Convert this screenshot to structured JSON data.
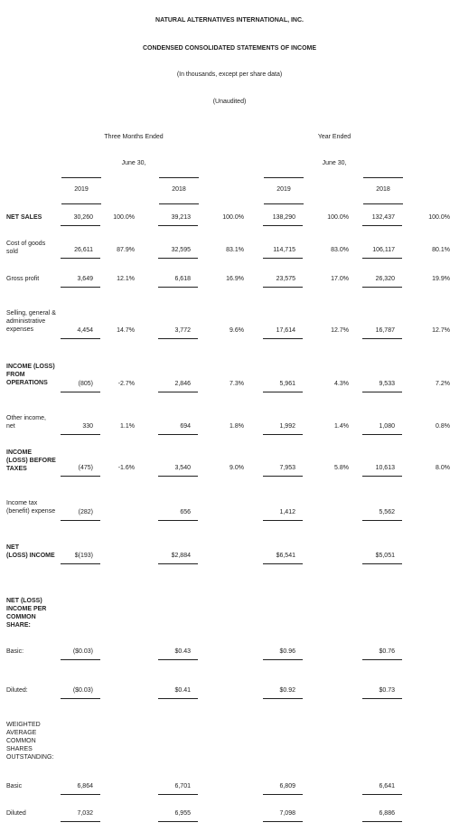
{
  "header": {
    "company": "NATURAL ALTERNATIVES INTERNATIONAL, INC.",
    "title": "CONDENSED CONSOLIDATED STATEMENTS OF INCOME",
    "subtitle": "(In thousands, except per share data)",
    "note": "(Unaudited)"
  },
  "periods": [
    {
      "label": "Three Months Ended",
      "date": "June 30,"
    },
    {
      "label": "Year Ended",
      "date": "June 30,"
    }
  ],
  "years": [
    "2019",
    "2018",
    "2019",
    "2018"
  ],
  "rows": [
    {
      "label": [
        "NET SALES"
      ],
      "bold": true,
      "amounts": [
        "30,260",
        "39,213",
        "138,290",
        "132,437"
      ],
      "percents": [
        "100.0%",
        "100.0%",
        "100.0%",
        "100.0%"
      ]
    },
    {
      "label": [
        "Cost of goods",
        "sold"
      ],
      "amounts": [
        "26,611",
        "32,595",
        "114,715",
        "106,117"
      ],
      "percents": [
        "87.9%",
        "83.1%",
        "83.0%",
        "80.1%"
      ]
    },
    {
      "label": [
        "Gross profit"
      ],
      "amounts": [
        "3,649",
        "6,618",
        "23,575",
        "26,320"
      ],
      "percents": [
        "12.1%",
        "16.9%",
        "17.0%",
        "19.9%"
      ]
    },
    {
      "label": [
        "Selling, general &",
        "administrative",
        "expenses"
      ],
      "amounts": [
        "4,454",
        "3,772",
        "17,614",
        "16,787"
      ],
      "percents": [
        "14.7%",
        "9.6%",
        "12.7%",
        "12.7%"
      ]
    },
    {
      "label": [
        "INCOME (LOSS)",
        "FROM",
        "OPERATIONS"
      ],
      "bold": true,
      "amounts": [
        "(805)",
        "2,846",
        "5,961",
        "9,533"
      ],
      "percents": [
        "-2.7%",
        "7.3%",
        "4.3%",
        "7.2%"
      ]
    },
    {
      "label": [
        "Other income,",
        "net"
      ],
      "amounts": [
        "330",
        "694",
        "1,992",
        "1,080"
      ],
      "percents": [
        "1.1%",
        "1.8%",
        "1.4%",
        "0.8%"
      ]
    },
    {
      "label": [
        "INCOME",
        "(LOSS) BEFORE",
        "TAXES"
      ],
      "bold": true,
      "amounts": [
        "(475)",
        "3,540",
        "7,953",
        "10,613"
      ],
      "percents": [
        "-1.6%",
        "9.0%",
        "5.8%",
        "8.0%"
      ]
    },
    {
      "label": [
        "Income tax",
        "(benefit) expense"
      ],
      "amounts": [
        "(282)",
        "656",
        "1,412",
        "5,562"
      ]
    },
    {
      "label": [
        "NET",
        "(LOSS) INCOME"
      ],
      "bold": true,
      "amounts": [
        "$(193)",
        "$2,884",
        "$6,541",
        "$5,051"
      ]
    },
    {
      "label": [
        "NET (LOSS)",
        "INCOME PER",
        "COMMON",
        "SHARE:"
      ],
      "bold": true
    },
    {
      "label": [
        "Basic:"
      ],
      "amounts": [
        "($0.03)",
        "$0.43",
        "$0.96",
        "$0.76"
      ]
    },
    {
      "label": [
        "Diluted:"
      ],
      "amounts": [
        "($0.03)",
        "$0.41",
        "$0.92",
        "$0.73"
      ]
    },
    {
      "label": [
        "WEIGHTED",
        "AVERAGE",
        "COMMON",
        "SHARES",
        "OUTSTANDING:"
      ]
    },
    {
      "label": [
        "Basic"
      ],
      "amounts": [
        "6,864",
        "6,701",
        "6,809",
        "6,641"
      ]
    },
    {
      "label": [
        "Diluted"
      ],
      "amounts": [
        "7,032",
        "6,955",
        "7,098",
        "6,886"
      ]
    }
  ]
}
